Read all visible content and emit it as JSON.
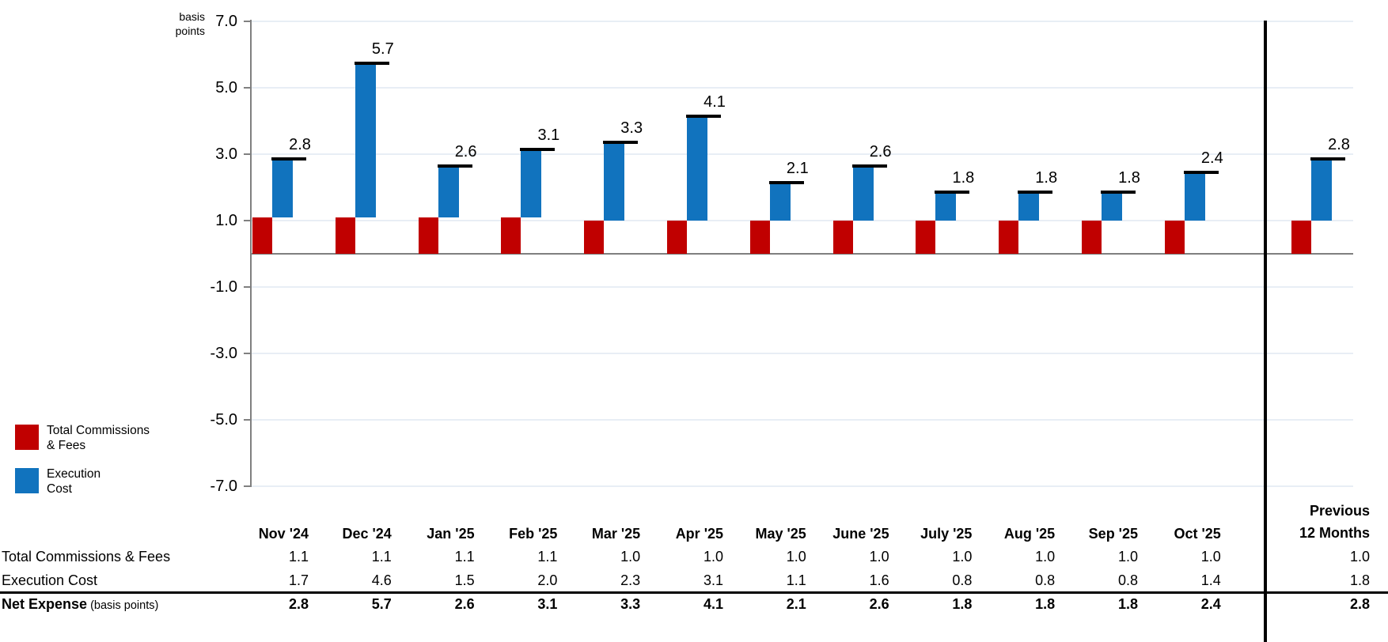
{
  "chart": {
    "y_axis": {
      "unit_lines": [
        "basis",
        "points"
      ],
      "tick_labels": [
        "7.0",
        "5.0",
        "3.0",
        "1.0",
        "-1.0",
        "-3.0",
        "-5.0",
        "-7.0"
      ],
      "tick_values": [
        7,
        5,
        3,
        1,
        -1,
        -3,
        -5,
        -7
      ]
    }
  },
  "chart_data": {
    "type": "bar",
    "subtype": "stacked-offset-waterfall-with-total-markers",
    "title": "",
    "unit": "basis points",
    "categories": [
      "Nov '24",
      "Dec '24",
      "Jan '25",
      "Feb '25",
      "Mar '25",
      "Apr '25",
      "May '25",
      "June '25",
      "July '25",
      "Aug '25",
      "Sep '25",
      "Oct '25",
      "Previous 12 Months"
    ],
    "series": [
      {
        "name": "Total Commissions & Fees",
        "color": "#C00000",
        "values": [
          1.1,
          1.1,
          1.1,
          1.1,
          1.0,
          1.0,
          1.0,
          1.0,
          1.0,
          1.0,
          1.0,
          1.0,
          1.0
        ]
      },
      {
        "name": "Execution Cost",
        "color": "#1173BE",
        "values": [
          1.7,
          4.6,
          1.5,
          2.0,
          2.3,
          3.1,
          1.1,
          1.6,
          0.8,
          0.8,
          0.8,
          1.4,
          1.8
        ]
      }
    ],
    "totals": {
      "name": "Net Expense",
      "note": "(basis points)",
      "values": [
        2.8,
        5.7,
        2.6,
        3.1,
        3.3,
        4.1,
        2.1,
        2.6,
        1.8,
        1.8,
        1.8,
        2.4,
        2.8
      ]
    },
    "total_labels": [
      "2.8",
      "5.7",
      "2.6",
      "3.1",
      "3.3",
      "4.1",
      "2.1",
      "2.6",
      "1.8",
      "1.8",
      "1.8",
      "2.4",
      "2.8"
    ],
    "ylim": [
      -7,
      7
    ],
    "grid": true,
    "legend_position": "bottom-left",
    "separator_after_category_index": 11,
    "colors": {
      "commissions": "#C00000",
      "execution": "#1173BE",
      "total_marker": "#000000",
      "gridline": "#e8eef5",
      "axis": "#808080"
    }
  },
  "legend": {
    "items": [
      {
        "line1": "Total Commissions",
        "line2": "& Fees",
        "color": "#C00000"
      },
      {
        "line1": "Execution",
        "line2": "Cost",
        "color": "#1173BE"
      }
    ]
  },
  "table": {
    "column_headers": [
      "Nov '24",
      "Dec '24",
      "Jan '25",
      "Feb '25",
      "Mar '25",
      "Apr '25",
      "May '25",
      "June '25",
      "July '25",
      "Aug '25",
      "Sep '25",
      "Oct '25"
    ],
    "last_column_header_lines": [
      "Previous",
      "12 Months"
    ],
    "rows": [
      {
        "label": "Total Commissions & Fees",
        "bold": false,
        "values": [
          "1.1",
          "1.1",
          "1.1",
          "1.1",
          "1.0",
          "1.0",
          "1.0",
          "1.0",
          "1.0",
          "1.0",
          "1.0",
          "1.0"
        ],
        "last": "1.0"
      },
      {
        "label": "Execution Cost",
        "bold": false,
        "values": [
          "1.7",
          "4.6",
          "1.5",
          "2.0",
          "2.3",
          "3.1",
          "1.1",
          "1.6",
          "0.8",
          "0.8",
          "0.8",
          "1.4"
        ],
        "last": "1.8"
      },
      {
        "label_bold": "Net Expense",
        "label_note": " (basis points)",
        "bold": true,
        "values": [
          "2.8",
          "5.7",
          "2.6",
          "3.1",
          "3.3",
          "4.1",
          "2.1",
          "2.6",
          "1.8",
          "1.8",
          "1.8",
          "2.4"
        ],
        "last": "2.8"
      }
    ]
  }
}
